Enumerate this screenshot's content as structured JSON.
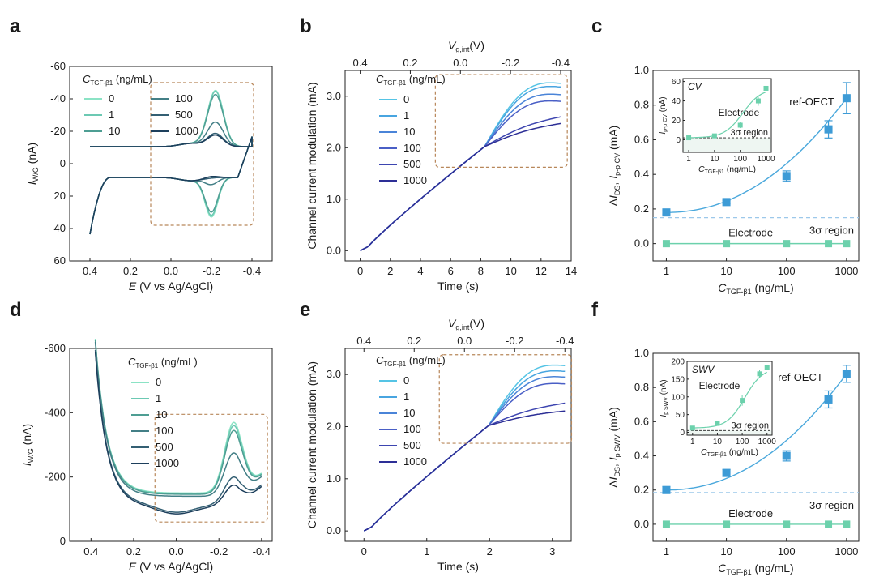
{
  "panel_letters": [
    "a",
    "b",
    "c",
    "d",
    "e",
    "f"
  ],
  "colors": {
    "shades": [
      "#8be3c5",
      "#6cc9b3",
      "#4e9e93",
      "#437f86",
      "#335f73",
      "#1d3f5c"
    ],
    "blues": [
      "#55c4e5",
      "#48a5e0",
      "#4a84d8",
      "#4a5fc6",
      "#3d45b0",
      "#2d2f96"
    ],
    "oect": "#3d9bd6",
    "oect_line": "#4aa8dc",
    "electrode": "#6cd1ac",
    "box": "#b8875a",
    "threshold": "#9cc8ea"
  },
  "legend": {
    "title": "C",
    "title_sub": "TGF-β1",
    "title_unit": "(ng/mL)",
    "entries": [
      "0",
      "1",
      "10",
      "100",
      "500",
      "1000"
    ]
  },
  "common": {
    "potential_xlabel": "E",
    "potential_xlabel_rest": "(V vs Ag/AgCl)",
    "vg_label": "V",
    "vg_sub": "g,int",
    "vg_unit": "(V)",
    "current_ylabel": "Channel current modulation (mA)",
    "time_xlabel": "Time (s)",
    "iwg_label": "I",
    "iwg_sub": "W/G",
    "iwg_unit": "(nA)",
    "conc_label": "C",
    "conc_sub": "TGF-β1",
    "conc_unit": "(ng/mL)",
    "ref_oect": "ref-OECT",
    "electrode": "Electrode",
    "sigma_region": "3σ region"
  },
  "chart_data": [
    {
      "panel": "a",
      "type": "line",
      "title": "",
      "xlabel": "E (V vs Ag/AgCl)",
      "ylabel": "I W/G (nA)",
      "xlim": [
        0.5,
        -0.5
      ],
      "ylim": [
        60,
        -60
      ],
      "xticks": [
        "0.4",
        "0.2",
        "0.0",
        "-0.2",
        "-0.4"
      ],
      "yticks": [
        "-60",
        "-40",
        "-20",
        "0",
        "20",
        "40",
        "60"
      ],
      "peak_forward_nA": [
        -47.5,
        -47,
        -45,
        -28,
        -21,
        -20
      ],
      "peak_reverse_nA": [
        33,
        32,
        30,
        13,
        9,
        8
      ]
    },
    {
      "panel": "b",
      "type": "line",
      "xlabel": "Time (s)",
      "ylabel": "Channel current modulation (mA)",
      "x2label": "V g,int (V)",
      "xlim": [
        -1,
        14
      ],
      "ylim": [
        -0.2,
        3.5
      ],
      "xticks": [
        "0",
        "2",
        "4",
        "6",
        "8",
        "10",
        "12",
        "14"
      ],
      "yticks": [
        "0.0",
        "1.0",
        "2.0",
        "3.0"
      ],
      "x2ticks": [
        "0.4",
        "0.2",
        "0.0",
        "-0.2",
        "-0.4"
      ],
      "end_x_s": 13.3,
      "end_values_mA": [
        3.25,
        3.18,
        3.03,
        2.9,
        2.6,
        2.47
      ]
    },
    {
      "panel": "c",
      "type": "scatter",
      "xlabel": "C TGF-β1 (ng/mL)",
      "ylabel": "ΔI DS, I p-p CV (mA)",
      "xscale": "log",
      "xlim": [
        0.6,
        1600
      ],
      "ylim": [
        -0.1,
        1.0
      ],
      "xticks": [
        "1",
        "10",
        "100",
        "1000"
      ],
      "yticks": [
        "0.0",
        "0.2",
        "0.4",
        "0.6",
        "0.8",
        "1.0"
      ],
      "series": [
        {
          "name": "ref-OECT",
          "x": [
            1,
            10,
            100,
            500,
            1000
          ],
          "y": [
            0.18,
            0.24,
            0.39,
            0.66,
            0.84
          ],
          "err": [
            0.01,
            0.01,
            0.03,
            0.05,
            0.09
          ]
        },
        {
          "name": "Electrode",
          "x": [
            1,
            10,
            100,
            500,
            1000
          ],
          "y": [
            0.0,
            0.0,
            0.0,
            0.0,
            0.0
          ],
          "err": [
            0,
            0,
            0,
            0,
            0
          ]
        }
      ],
      "threshold": 0.15,
      "inset": {
        "label": "CV",
        "xlabel": "C TGF-β1 (ng/mL)",
        "ylabel": "I p-p CV (nA)",
        "xticks": [
          "1",
          "10",
          "100",
          "1000"
        ],
        "yticks": [
          "0",
          "20",
          "40",
          "60"
        ],
        "ylim": [
          -13,
          63
        ],
        "threshold": 2,
        "series": {
          "x": [
            1,
            10,
            100,
            500,
            1000
          ],
          "y": [
            2,
            4,
            15,
            40,
            53
          ],
          "err": [
            0.5,
            0.5,
            3,
            5,
            3
          ]
        }
      }
    },
    {
      "panel": "d",
      "type": "line",
      "xlabel": "E (V vs Ag/AgCl)",
      "ylabel": "I W/G (nA)",
      "xlim": [
        0.5,
        -0.45
      ],
      "ylim": [
        0,
        -600
      ],
      "xticks": [
        "0.4",
        "0.2",
        "0.0",
        "-0.2",
        "-0.4"
      ],
      "yticks": [
        "-600",
        "-400",
        "-200",
        "0"
      ],
      "peak_nA": [
        -360,
        -350,
        -335,
        -265,
        -190,
        -165
      ]
    },
    {
      "panel": "e",
      "type": "line",
      "xlabel": "Time (s)",
      "ylabel": "Channel current modulation (mA)",
      "x2label": "V g,int (V)",
      "xlim": [
        -0.3,
        3.3
      ],
      "ylim": [
        -0.2,
        3.5
      ],
      "xticks": [
        "0",
        "1",
        "2",
        "3"
      ],
      "yticks": [
        "0.0",
        "1.0",
        "2.0",
        "3.0"
      ],
      "x2ticks": [
        "0.4",
        "0.2",
        "0.0",
        "-0.2",
        "-0.4"
      ],
      "end_x_s": 3.2,
      "end_values_mA": [
        3.17,
        3.06,
        2.95,
        2.82,
        2.45,
        2.3
      ]
    },
    {
      "panel": "f",
      "type": "scatter",
      "xlabel": "C TGF-β1 (ng/mL)",
      "ylabel": "ΔI DS, I p SWV (mA)",
      "xscale": "log",
      "xlim": [
        0.6,
        1600
      ],
      "ylim": [
        -0.1,
        1.0
      ],
      "xticks": [
        "1",
        "10",
        "100",
        "1000"
      ],
      "yticks": [
        "0.0",
        "0.2",
        "0.4",
        "0.6",
        "0.8",
        "1.0"
      ],
      "series": [
        {
          "name": "ref-OECT",
          "x": [
            1,
            10,
            100,
            500,
            1000
          ],
          "y": [
            0.2,
            0.3,
            0.4,
            0.73,
            0.88
          ],
          "err": [
            0.02,
            0.02,
            0.03,
            0.05,
            0.05
          ]
        },
        {
          "name": "Electrode",
          "x": [
            1,
            10,
            100,
            500,
            1000
          ],
          "y": [
            0.0,
            0.0,
            0.0,
            0.0,
            0.0
          ],
          "err": [
            0,
            0,
            0,
            0,
            0
          ]
        }
      ],
      "threshold": 0.185,
      "inset": {
        "label": "SWV",
        "xlabel": "C TGF-β1 (ng/mL)",
        "ylabel": "I p SWV (nA)",
        "xticks": [
          "1",
          "10",
          "100",
          "1000"
        ],
        "yticks": [
          "0",
          "50",
          "100",
          "150",
          "200"
        ],
        "ylim": [
          -8,
          200
        ],
        "threshold": 5,
        "series": {
          "x": [
            1,
            10,
            100,
            500,
            1000
          ],
          "y": [
            12,
            25,
            90,
            165,
            182
          ],
          "err": [
            3,
            5,
            15,
            10,
            3
          ]
        }
      }
    }
  ]
}
